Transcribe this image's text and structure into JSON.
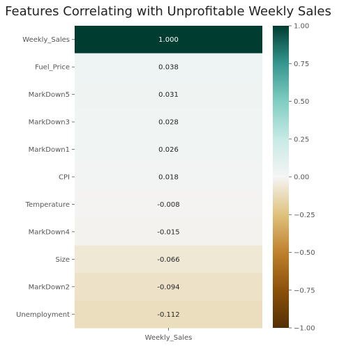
{
  "chart_data": {
    "type": "heatmap",
    "title": "Features Correlating with Unprofitable Weekly Sales",
    "x_categories": [
      "Weekly_Sales"
    ],
    "y_categories": [
      "Weekly_Sales",
      "Fuel_Price",
      "MarkDown5",
      "MarkDown3",
      "MarkDown1",
      "CPI",
      "Temperature",
      "MarkDown4",
      "Size",
      "MarkDown2",
      "Unemployment"
    ],
    "values": [
      1.0,
      0.038,
      0.031,
      0.028,
      0.026,
      0.018,
      -0.008,
      -0.015,
      -0.066,
      -0.094,
      -0.112
    ],
    "value_labels": [
      "1.000",
      "0.038",
      "0.031",
      "0.028",
      "0.026",
      "0.018",
      "-0.008",
      "-0.015",
      "-0.066",
      "-0.094",
      "-0.112"
    ],
    "colormap": "BrBG",
    "vmin": -1.0,
    "vmax": 1.0,
    "colorbar_ticks": [
      1.0,
      0.75,
      0.5,
      0.25,
      0.0,
      -0.25,
      -0.5,
      -0.75,
      -1.0
    ],
    "colorbar_tick_labels": [
      "1.00",
      "0.75",
      "0.50",
      "0.25",
      "0.00",
      "−0.25",
      "−0.50",
      "−0.75",
      "−1.00"
    ]
  }
}
